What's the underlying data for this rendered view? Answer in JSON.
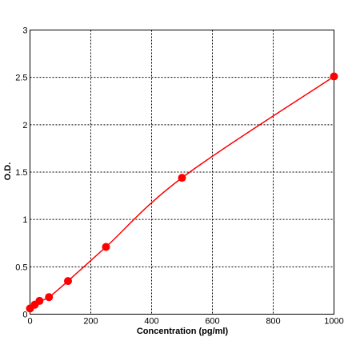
{
  "chart_data": {
    "type": "line",
    "title": "",
    "xlabel": "Concentration (pg/ml)",
    "ylabel": "O.D.",
    "xlim": [
      0,
      1000
    ],
    "ylim": [
      0,
      3
    ],
    "xticks": [
      0,
      200,
      400,
      600,
      800,
      1000
    ],
    "yticks": [
      0,
      0.5,
      1,
      1.5,
      2,
      2.5,
      3
    ],
    "xtick_labels": [
      "0",
      "200",
      "400",
      "600",
      "800",
      "1000"
    ],
    "ytick_labels": [
      "0",
      "0.5",
      "1",
      "1.5",
      "2",
      "2.5",
      "3"
    ],
    "grid": true,
    "series": [
      {
        "marker": "circle",
        "color": "#ff0000",
        "x": [
          0,
          15.6,
          31.2,
          62.5,
          125,
          250,
          500,
          1000
        ],
        "y": [
          0.06,
          0.1,
          0.14,
          0.18,
          0.35,
          0.71,
          1.44,
          2.51
        ]
      }
    ]
  }
}
